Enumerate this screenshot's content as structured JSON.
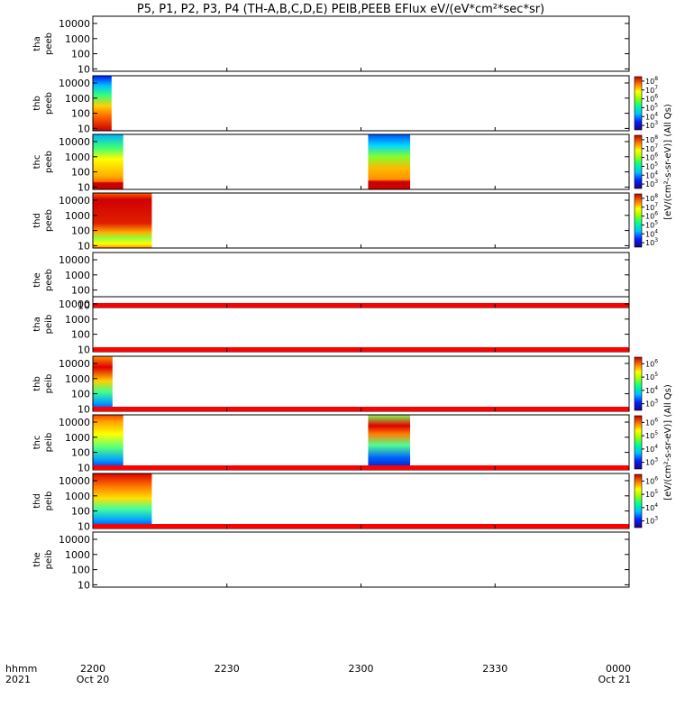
{
  "chart_data": {
    "type": "heatmap",
    "title": "P5, P1, P2, P3, P4 (TH-A,B,C,D,E) PEIB,PEEB EFlux eV/(eV*cm²*sec*sr)",
    "ylabel_unit": "eV",
    "yscale": "log",
    "yticks": [
      "10",
      "100",
      "1000",
      "10000"
    ],
    "ylim": [
      7,
      30000
    ],
    "xlim": [
      "2021-10-20 22:00",
      "2021-10-21 00:00"
    ],
    "x_axis": {
      "row1_label": "hhmm",
      "row2_label": "2021",
      "ticks": [
        {
          "t": "2200",
          "d": "Oct 20",
          "min": 0
        },
        {
          "t": "2230",
          "d": "",
          "min": 30
        },
        {
          "t": "2300",
          "d": "",
          "min": 60
        },
        {
          "t": "2330",
          "d": "",
          "min": 90
        },
        {
          "t": "0000",
          "d": "Oct 21",
          "min": 120
        }
      ]
    },
    "colorbar_label_peeb": "[eV/(cm²-s-sr-eV)] (All Qs)",
    "colorbar_label_peib": "[eV/(cm²-s-sr-eV)] (All Qs)",
    "panels": [
      {
        "l1": "tha",
        "l2": "peeb",
        "blocks": [],
        "cb": null,
        "redline": false
      },
      {
        "l1": "thb",
        "l2": "peeb",
        "blocks": [
          {
            "t0": 0,
            "t1": 4.2,
            "s": "e1"
          }
        ],
        "cb": {
          "exps": [
            "3",
            "4",
            "5",
            "6",
            "7",
            "8"
          ],
          "top_exp": "8"
        },
        "redline": false
      },
      {
        "l1": "thc",
        "l2": "peeb",
        "blocks": [
          {
            "t0": 0,
            "t1": 6.8,
            "s": "e2"
          },
          {
            "t0": 61.6,
            "t1": 71.0,
            "s": "e3"
          }
        ],
        "cb": {
          "exps": [
            "3",
            "4",
            "5",
            "6",
            "7",
            "8"
          ],
          "top_exp": "8"
        },
        "redline": false
      },
      {
        "l1": "thd",
        "l2": "peeb",
        "blocks": [
          {
            "t0": 0,
            "t1": 13.2,
            "s": "e4"
          }
        ],
        "cb": {
          "exps": [
            "3",
            "4",
            "5",
            "6",
            "7",
            "8"
          ],
          "top_exp": "8"
        },
        "redline": false
      },
      {
        "l1": "the",
        "l2": "peeb",
        "blocks": [],
        "cb": null,
        "redline": true
      },
      {
        "l1": "tha",
        "l2": "peib",
        "blocks": [],
        "cb": null,
        "redline": true
      },
      {
        "l1": "thb",
        "l2": "peib",
        "blocks": [
          {
            "t0": 0,
            "t1": 4.4,
            "s": "i1"
          }
        ],
        "cb": {
          "exps": [
            "3",
            "4",
            "5",
            "6"
          ],
          "top_exp": "6"
        },
        "redline": true
      },
      {
        "l1": "thc",
        "l2": "peib",
        "blocks": [
          {
            "t0": 0,
            "t1": 6.8,
            "s": "i2"
          },
          {
            "t0": 61.6,
            "t1": 71.0,
            "s": "i3"
          }
        ],
        "cb": {
          "exps": [
            "3",
            "4",
            "5",
            "6"
          ],
          "top_exp": "6"
        },
        "redline": true
      },
      {
        "l1": "thd",
        "l2": "peib",
        "blocks": [
          {
            "t0": 0,
            "t1": 13.2,
            "s": "i4"
          }
        ],
        "cb": {
          "exps": [
            "3",
            "4",
            "5",
            "6"
          ],
          "top_exp": "6"
        },
        "redline": true
      },
      {
        "l1": "the",
        "l2": "peib",
        "blocks": [],
        "cb": null,
        "redline": false
      }
    ]
  }
}
